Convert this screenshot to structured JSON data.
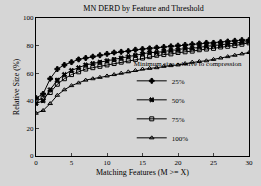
{
  "chart_data": {
    "type": "line",
    "title": "MN DERD by Feature and Threshold",
    "x_label": "Matching Features (M >= X)",
    "y_label": "Relative Size (%)",
    "legend_title": "Minimum size relative to compression",
    "legend": "lower right",
    "grid": false,
    "x": [
      0,
      1,
      2,
      3,
      4,
      5,
      6,
      7,
      8,
      9,
      10,
      11,
      12,
      13,
      14,
      15,
      16,
      17,
      18,
      19,
      20,
      21,
      22,
      23,
      24,
      25,
      26,
      27,
      28,
      29,
      30
    ],
    "xlim": [
      0,
      30
    ],
    "xticks": [
      0,
      5,
      10,
      15,
      20,
      25,
      30
    ],
    "ylim": [
      0,
      100
    ],
    "yticks": [
      0,
      20,
      40,
      60,
      80,
      100
    ],
    "series": [
      {
        "name": "25%",
        "color": "#000000",
        "marker": "cross",
        "values": [
          42,
          45,
          56,
          63,
          66,
          68,
          70,
          71,
          72,
          73,
          74,
          75,
          75.5,
          76,
          77,
          77.5,
          78,
          78.5,
          79,
          79.5,
          80,
          80.5,
          81,
          81.5,
          82,
          82,
          82.5,
          83,
          83.5,
          84,
          84
        ]
      },
      {
        "name": "50%",
        "color": "#000000",
        "marker": "x",
        "values": [
          38,
          40,
          48,
          55,
          59,
          62,
          64,
          66,
          67,
          68,
          69,
          70,
          71,
          72,
          73,
          74,
          75,
          75,
          76,
          76.5,
          77,
          78,
          78,
          79,
          79.5,
          80,
          80.5,
          81,
          82,
          82.5,
          83
        ]
      },
      {
        "name": "75%",
        "color": "#000000",
        "marker": "square-open",
        "values": [
          40,
          42,
          46,
          52,
          56,
          59,
          61,
          63,
          64,
          65,
          66,
          67,
          68,
          69,
          70,
          71,
          72,
          73,
          73.5,
          74,
          75,
          75.5,
          76,
          77,
          77.5,
          78,
          79,
          79.5,
          80,
          81,
          82
        ]
      },
      {
        "name": "100%",
        "color": "#000000",
        "marker": "triangle-up-open",
        "values": [
          31,
          33,
          38,
          44,
          48,
          51,
          53,
          55,
          56,
          57,
          58,
          59,
          60,
          61,
          62,
          63,
          63.5,
          64,
          65,
          65.5,
          66,
          67,
          68,
          68.5,
          69,
          70,
          71,
          72,
          73,
          74,
          75
        ]
      }
    ]
  }
}
